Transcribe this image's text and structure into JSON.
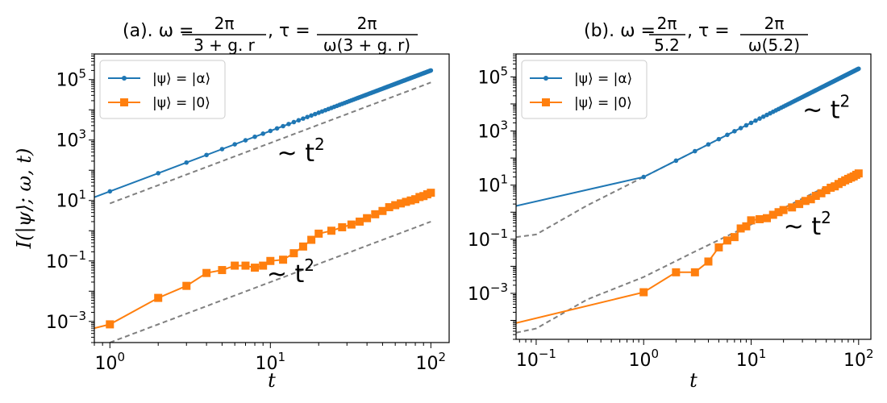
{
  "colors": {
    "blue": "#1f77b4",
    "orange": "#ff7f0e",
    "grey": "#808080",
    "frame": "#000000"
  },
  "chart_data": [
    {
      "type": "line",
      "title": {
        "prefix": "(a). ω = ",
        "omega_num": "2π",
        "omega_den": "3 + g. r",
        "sep": ", τ = ",
        "tau_num": "2π",
        "tau_den": "ω(3 + g. r)"
      },
      "xscale": "log",
      "yscale": "log",
      "xlim": [
        0.8,
        130
      ],
      "ylim": [
        0.0002,
        700000
      ],
      "xlabel": "t",
      "ylabel": "I(|ψ⟩; ω, t)",
      "xticks": [
        {
          "base": "10",
          "exp": "0",
          "value": 1
        },
        {
          "base": "10",
          "exp": "1",
          "value": 10
        },
        {
          "base": "10",
          "exp": "2",
          "value": 100
        }
      ],
      "yticks": [
        {
          "base": "10",
          "exp": "−3",
          "value": 0.001
        },
        {
          "base": "10",
          "exp": "−1",
          "value": 0.1
        },
        {
          "base": "10",
          "exp": "1",
          "value": 10
        },
        {
          "base": "10",
          "exp": "3",
          "value": 1000
        },
        {
          "base": "10",
          "exp": "5",
          "value": 100000
        }
      ],
      "legend": {
        "position": "upper-left",
        "entries": [
          "|ψ⟩ = |α⟩",
          "|ψ⟩ = |0⟩"
        ]
      },
      "annotations": [
        {
          "base": "~ t",
          "exp": "2",
          "x": 11,
          "y": 200
        },
        {
          "base": "~ t",
          "exp": "2",
          "x": 9.5,
          "y": 0.02
        }
      ],
      "series": [
        {
          "name": "|ψ⟩ = |α⟩",
          "color": "#1f77b4",
          "marker": "circle",
          "kind": "scaled",
          "coef": 20,
          "power": 2,
          "x_start": 1,
          "x_end": 100,
          "line_from_x": 0.8
        },
        {
          "name": "|ψ⟩ = |0⟩",
          "color": "#ff7f0e",
          "marker": "square",
          "kind": "points",
          "x": [
            0.8,
            1,
            2,
            3,
            4,
            5,
            6,
            7,
            8,
            9,
            10,
            12,
            14,
            16,
            18,
            20,
            24,
            28,
            32,
            36,
            40,
            45,
            50,
            55,
            60,
            65,
            70,
            75,
            80,
            85,
            90,
            95,
            100
          ],
          "y": [
            0.0006,
            0.0008,
            0.006,
            0.015,
            0.04,
            0.05,
            0.07,
            0.07,
            0.06,
            0.07,
            0.1,
            0.11,
            0.18,
            0.3,
            0.5,
            0.8,
            1.0,
            1.3,
            1.6,
            2.0,
            2.6,
            3.5,
            4.5,
            6,
            7,
            8,
            9,
            10,
            11,
            13,
            14,
            16,
            18
          ],
          "markers_from_index": 1
        }
      ],
      "guides": [
        {
          "coef": 8,
          "power": 2,
          "x_start": 1,
          "x_end": 100
        },
        {
          "coef": 0.0002,
          "power": 2,
          "x_start": 1,
          "x_end": 100
        }
      ]
    },
    {
      "type": "line",
      "title": {
        "prefix": "(b). ω = ",
        "omega_num": "2π",
        "omega_den": "5.2",
        "sep": ", τ = ",
        "tau_num": "2π",
        "tau_den": "ω(5.2)"
      },
      "xscale": "log",
      "yscale": "log",
      "xlim": [
        0.065,
        130
      ],
      "ylim": [
        2e-05,
        700000
      ],
      "xlabel": "t",
      "ylabel": "",
      "xticks": [
        {
          "base": "10",
          "exp": "−1",
          "value": 0.1
        },
        {
          "base": "10",
          "exp": "0",
          "value": 1
        },
        {
          "base": "10",
          "exp": "1",
          "value": 10
        },
        {
          "base": "10",
          "exp": "2",
          "value": 100
        }
      ],
      "yticks": [
        {
          "base": "10",
          "exp": "−3",
          "value": 0.001
        },
        {
          "base": "10",
          "exp": "−1",
          "value": 0.1
        },
        {
          "base": "10",
          "exp": "1",
          "value": 10
        },
        {
          "base": "10",
          "exp": "3",
          "value": 1000
        },
        {
          "base": "10",
          "exp": "5",
          "value": 100000
        }
      ],
      "legend": {
        "position": "upper-left",
        "entries": [
          "|ψ⟩ = |α⟩",
          "|ψ⟩ = |0⟩"
        ]
      },
      "annotations": [
        {
          "base": "~ t",
          "exp": "2",
          "x": 30,
          "y": 3000
        },
        {
          "base": "~ t",
          "exp": "2",
          "x": 20,
          "y": 0.15
        }
      ],
      "series": [
        {
          "name": "|ψ⟩ = |α⟩",
          "color": "#1f77b4",
          "marker": "circle",
          "kind": "mixed",
          "head_x": [
            0.065,
            1
          ],
          "head_y": [
            1.7,
            20
          ],
          "coef": 20,
          "power": 2,
          "x_start": 1,
          "x_end": 100
        },
        {
          "name": "|ψ⟩ = |0⟩",
          "color": "#ff7f0e",
          "marker": "square",
          "kind": "points",
          "x": [
            0.065,
            1,
            2,
            3,
            4,
            5,
            6,
            7,
            8,
            9,
            10,
            12,
            14,
            16,
            18,
            20,
            24,
            28,
            32,
            36,
            40,
            45,
            50,
            55,
            60,
            65,
            70,
            75,
            80,
            85,
            90,
            95,
            100
          ],
          "y": [
            8e-05,
            0.0011,
            0.006,
            0.006,
            0.015,
            0.05,
            0.09,
            0.12,
            0.25,
            0.3,
            0.5,
            0.55,
            0.6,
            0.8,
            1.0,
            1.2,
            1.5,
            2.0,
            2.6,
            3.0,
            4.0,
            5.0,
            6.5,
            8,
            9,
            11,
            13,
            15,
            17,
            19,
            21,
            24,
            27
          ],
          "markers_from_index": 1
        }
      ],
      "guides": [
        {
          "kind": "points",
          "x": [
            0.065,
            0.1,
            0.3,
            1,
            3,
            10,
            30,
            100
          ],
          "y": [
            0.12,
            0.15,
            1.8,
            20,
            180,
            2000,
            18000,
            200000
          ]
        },
        {
          "kind": "points",
          "x": [
            0.065,
            0.1,
            0.3,
            1,
            3,
            10,
            30,
            100
          ],
          "y": [
            3.5e-05,
            5e-05,
            0.0006,
            0.004,
            0.035,
            0.35,
            3.2,
            35
          ]
        }
      ]
    }
  ]
}
